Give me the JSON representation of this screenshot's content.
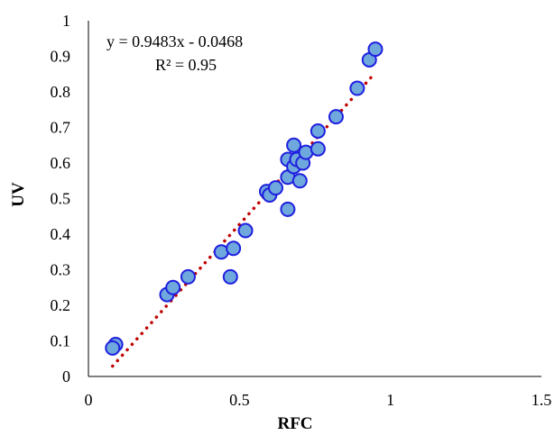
{
  "chart_data": {
    "type": "scatter",
    "xlabel": "RFC",
    "ylabel": "UV",
    "xlim": [
      0,
      1.5
    ],
    "ylim": [
      0,
      1
    ],
    "x_ticks": [
      0,
      0.5,
      1,
      1.5
    ],
    "y_ticks": [
      0,
      0.1,
      0.2,
      0.3,
      0.4,
      0.5,
      0.6,
      0.7,
      0.8,
      0.9,
      1
    ],
    "x_tick_labels": [
      "0",
      "0.5",
      "1",
      "1.5"
    ],
    "y_tick_labels": [
      "0",
      "0.1",
      "0.2",
      "0.3",
      "0.4",
      "0.5",
      "0.6",
      "0.7",
      "0.8",
      "0.9",
      "1"
    ],
    "grid": false,
    "legend": "none",
    "points": [
      {
        "x": 0.09,
        "y": 0.09
      },
      {
        "x": 0.08,
        "y": 0.08
      },
      {
        "x": 0.26,
        "y": 0.23
      },
      {
        "x": 0.28,
        "y": 0.25
      },
      {
        "x": 0.33,
        "y": 0.28
      },
      {
        "x": 0.44,
        "y": 0.35
      },
      {
        "x": 0.48,
        "y": 0.36
      },
      {
        "x": 0.47,
        "y": 0.28
      },
      {
        "x": 0.52,
        "y": 0.41
      },
      {
        "x": 0.59,
        "y": 0.52
      },
      {
        "x": 0.6,
        "y": 0.51
      },
      {
        "x": 0.62,
        "y": 0.53
      },
      {
        "x": 0.66,
        "y": 0.56
      },
      {
        "x": 0.66,
        "y": 0.47
      },
      {
        "x": 0.66,
        "y": 0.61
      },
      {
        "x": 0.68,
        "y": 0.59
      },
      {
        "x": 0.69,
        "y": 0.61
      },
      {
        "x": 0.68,
        "y": 0.65
      },
      {
        "x": 0.7,
        "y": 0.55
      },
      {
        "x": 0.71,
        "y": 0.6
      },
      {
        "x": 0.72,
        "y": 0.63
      },
      {
        "x": 0.76,
        "y": 0.64
      },
      {
        "x": 0.76,
        "y": 0.69
      },
      {
        "x": 0.82,
        "y": 0.73
      },
      {
        "x": 0.89,
        "y": 0.81
      },
      {
        "x": 0.93,
        "y": 0.89
      },
      {
        "x": 0.95,
        "y": 0.92
      }
    ],
    "trendline": {
      "slope": 0.9483,
      "intercept": -0.0468,
      "x_range": [
        0.08,
        0.95
      ],
      "style": "dotted",
      "color": "#C00000"
    },
    "annotations": {
      "equation": "y = 0.9483x - 0.0468",
      "r_squared": "R² = 0.95"
    },
    "colors": {
      "marker_fill": "#6FA8DC",
      "marker_stroke": "#1F1FE0",
      "axis": "#000000"
    }
  }
}
